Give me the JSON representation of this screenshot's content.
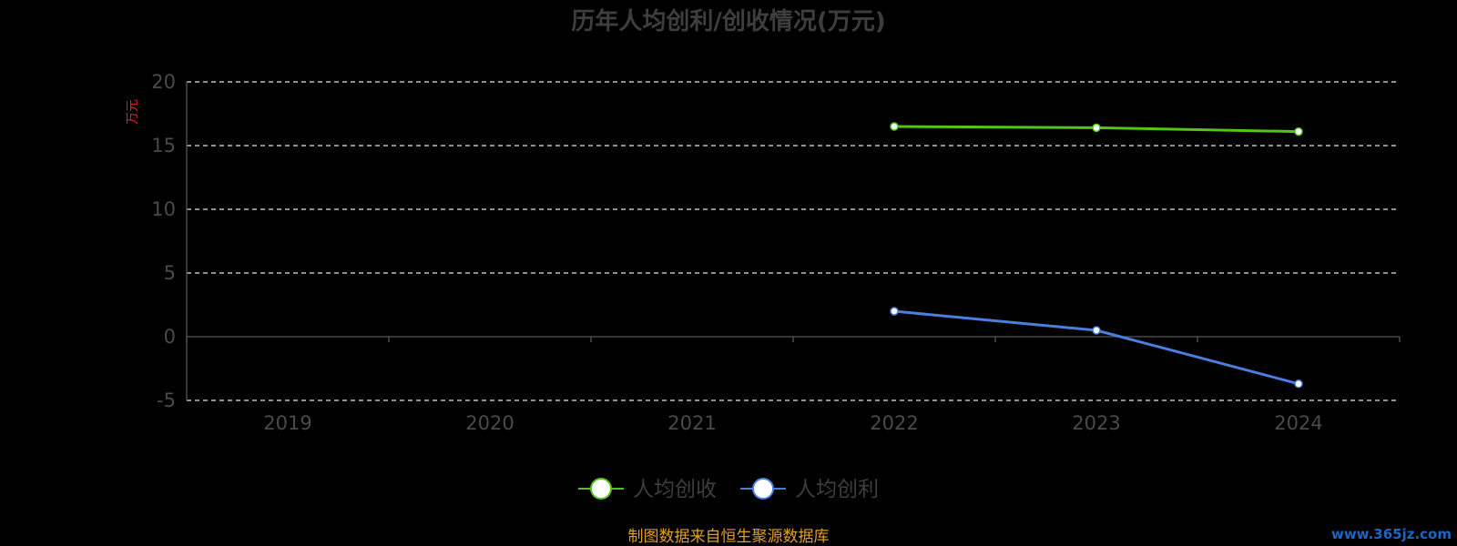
{
  "chart_data": {
    "type": "line",
    "title": "历年人均创利/创收情况(万元)",
    "ylabel": "万元",
    "categories": [
      "2019",
      "2020",
      "2021",
      "2022",
      "2023",
      "2024"
    ],
    "ylim": [
      -5,
      20
    ],
    "yticks": [
      -5,
      0,
      5,
      10,
      15,
      20
    ],
    "grid": true,
    "legend_position": "bottom-center",
    "series": [
      {
        "name": "人均创收",
        "color": "#52c41a",
        "values": [
          null,
          null,
          null,
          16.5,
          16.4,
          16.1
        ]
      },
      {
        "name": "人均创利",
        "color": "#4a7fe0",
        "values": [
          null,
          null,
          null,
          2.0,
          0.5,
          -3.7
        ]
      }
    ]
  },
  "footer": {
    "source": "制图数据来自恒生聚源数据库",
    "watermark": "www.365jz.com"
  }
}
